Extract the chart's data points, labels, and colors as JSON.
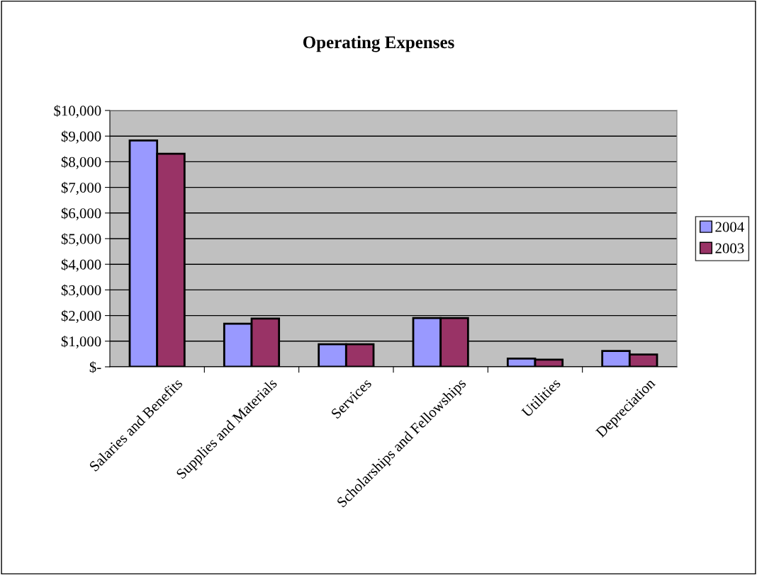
{
  "chart_data": {
    "type": "bar",
    "title": "Operating Expenses",
    "categories": [
      "Salaries and Benefits",
      "Supplies and Materials",
      "Services",
      "Scholarships and Fellowships",
      "Utilities",
      "Depreciation"
    ],
    "series": [
      {
        "name": "2004",
        "color": "#9999ff",
        "values": [
          8830,
          1680,
          880,
          1900,
          320,
          620
        ]
      },
      {
        "name": "2003",
        "color": "#993366",
        "values": [
          8310,
          1880,
          880,
          1900,
          280,
          480
        ]
      }
    ],
    "ylim": [
      0,
      10000
    ],
    "yticks": [
      {
        "value": 0,
        "label": "$-"
      },
      {
        "value": 1000,
        "label": "$1,000"
      },
      {
        "value": 2000,
        "label": "$2,000"
      },
      {
        "value": 3000,
        "label": "$3,000"
      },
      {
        "value": 4000,
        "label": "$4,000"
      },
      {
        "value": 5000,
        "label": "$5,000"
      },
      {
        "value": 6000,
        "label": "$6,000"
      },
      {
        "value": 7000,
        "label": "$7,000"
      },
      {
        "value": 8000,
        "label": "$8,000"
      },
      {
        "value": 9000,
        "label": "$9,000"
      },
      {
        "value": 10000,
        "label": "$10,000"
      }
    ],
    "grid": "y",
    "legend": "right"
  }
}
